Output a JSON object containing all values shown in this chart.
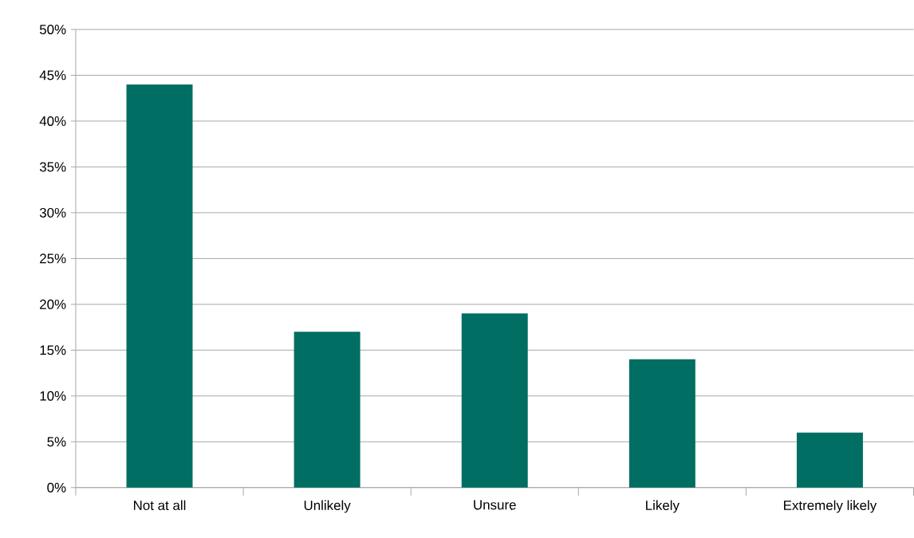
{
  "chart_data": {
    "type": "bar",
    "categories": [
      "Not at all",
      "Unlikely",
      "Unsure",
      "Likely",
      "Extremely likely"
    ],
    "values": [
      44,
      17,
      19,
      14,
      6
    ],
    "color": "#006e62",
    "ylim": [
      0,
      50
    ],
    "yticks": [
      {
        "value": 0,
        "label": "0%"
      },
      {
        "value": 5,
        "label": "5%"
      },
      {
        "value": 10,
        "label": "10%"
      },
      {
        "value": 15,
        "label": "15%"
      },
      {
        "value": 20,
        "label": "20%"
      },
      {
        "value": 25,
        "label": "25%"
      },
      {
        "value": 30,
        "label": "30%"
      },
      {
        "value": 35,
        "label": "35%"
      },
      {
        "value": 40,
        "label": "40%"
      },
      {
        "value": 45,
        "label": "45%"
      },
      {
        "value": 50,
        "label": "50%"
      }
    ],
    "grid": "y"
  }
}
